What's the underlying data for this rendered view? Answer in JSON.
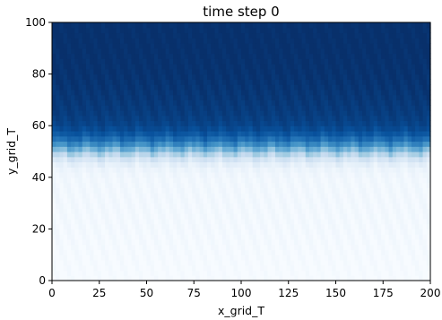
{
  "chart_data": {
    "type": "heatmap",
    "title": "time step 0",
    "xlabel": "x_grid_T",
    "ylabel": "y_grid_T",
    "xlim": [
      0,
      200
    ],
    "ylim": [
      0,
      100
    ],
    "x_ticks": [
      0,
      25,
      50,
      75,
      100,
      125,
      150,
      175,
      200
    ],
    "y_ticks": [
      0,
      20,
      40,
      60,
      80,
      100
    ],
    "colormap": "Blues",
    "colormap_colors": [
      "#f7fbff",
      "#deebf7",
      "#c6dbef",
      "#9ecae1",
      "#6baed6",
      "#4292c6",
      "#2171b5",
      "#08519c",
      "#08306b"
    ],
    "value_range": [
      0,
      1
    ],
    "column_profile": {
      "y": [
        0,
        10,
        20,
        30,
        40,
        44,
        46,
        48,
        50,
        52,
        54,
        56,
        58,
        60,
        64,
        70,
        80,
        90,
        100
      ],
      "value": [
        0.0,
        0.01,
        0.02,
        0.025,
        0.03,
        0.06,
        0.12,
        0.22,
        0.4,
        0.58,
        0.72,
        0.82,
        0.88,
        0.92,
        0.95,
        0.97,
        0.99,
        1.0,
        1.0
      ]
    },
    "grid": false,
    "legend": false
  }
}
